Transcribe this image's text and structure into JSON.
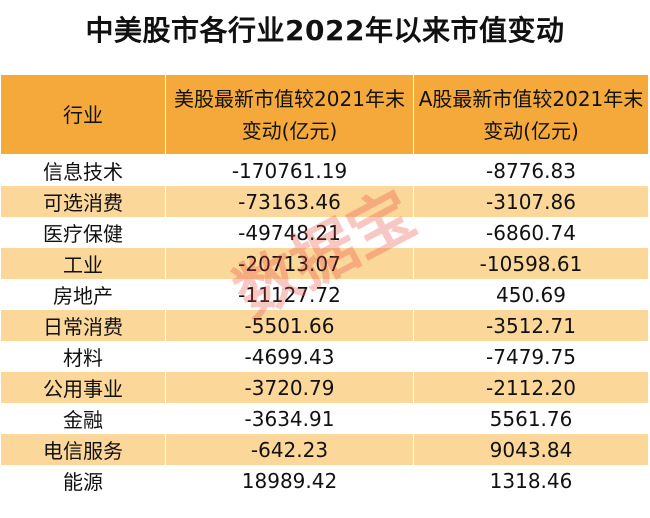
{
  "title": "中美股市各行业2022年以来市值变动",
  "headers": [
    "行业",
    "美股最新市值较2021年末变动(亿元)",
    "A股最新市值较2021年末变动(亿元)"
  ],
  "rows": [
    [
      "信息技术",
      "-170761.19",
      "-8776.83"
    ],
    [
      "可选消费",
      "-73163.46",
      "-3107.86"
    ],
    [
      "医疗保健",
      "-49748.21",
      "-6860.74"
    ],
    [
      "工业",
      "-20713.07",
      "-10598.61"
    ],
    [
      "房地产",
      "-11127.72",
      "450.69"
    ],
    [
      "日常消费",
      "-5501.66",
      "-3512.71"
    ],
    [
      "材料",
      "-4699.43",
      "-7479.75"
    ],
    [
      "公用事业",
      "-3720.79",
      "-2112.20"
    ],
    [
      "金融",
      "-3634.91",
      "5561.76"
    ],
    [
      "电信服务",
      "-642.23",
      "9043.84"
    ],
    [
      "能源",
      "18989.42",
      "1318.46"
    ]
  ],
  "watermark": "数据宝",
  "colors": {
    "header_bg": "#f5a93a",
    "stripe": "#fcd79a"
  }
}
